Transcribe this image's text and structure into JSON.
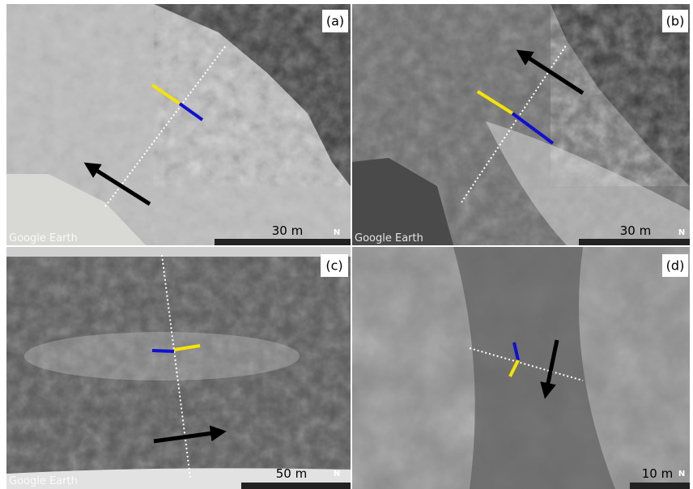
{
  "panels": [
    {
      "label": "(a)",
      "scale": "30 m",
      "watermark": "Google Earth",
      "north": "N"
    },
    {
      "label": "(b)",
      "scale": "30 m",
      "watermark": "Google Earth",
      "north": "N"
    },
    {
      "label": "(c)",
      "scale": "50 m",
      "watermark": "Google Earth",
      "north": "N"
    },
    {
      "label": "(d)",
      "scale": "10 m",
      "north": "N"
    }
  ]
}
